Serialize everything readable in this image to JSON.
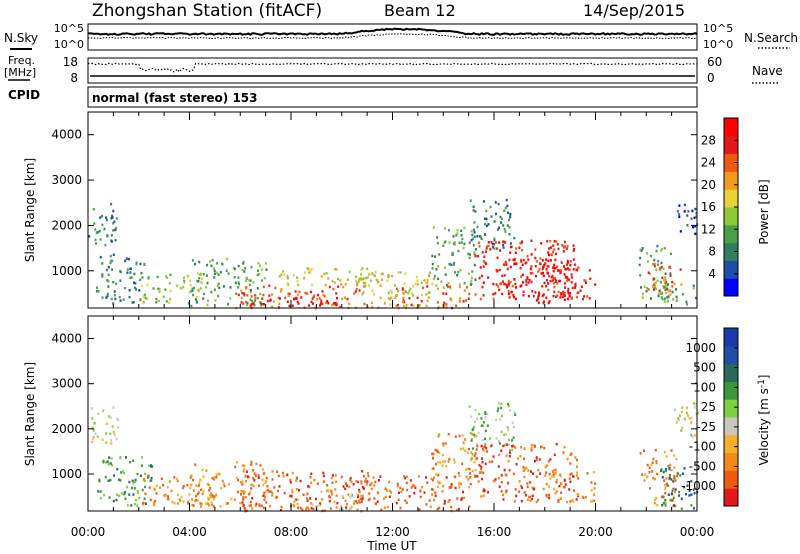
{
  "header": {
    "station": "Zhongshan Station (fitACF)",
    "beam": "Beam 12",
    "date": "14/Sep/2015"
  },
  "summary_panels": {
    "nsky_label": "N.Sky",
    "nsky_ticks": [
      "10^5",
      "10^0"
    ],
    "nsearch_label": "N.Search",
    "freq_label_line1": "Freq.",
    "freq_label_line2": "[MHz]",
    "freq_ticks": [
      "18",
      "8"
    ],
    "nave_label": "Nave",
    "nave_ticks": [
      "60",
      "0"
    ],
    "cpid_label": "CPID",
    "cpid_text": "normal (fast stereo) 153"
  },
  "colors": {
    "power_scale": [
      "#0000ff",
      "#1f4ea8",
      "#2f7f5f",
      "#4aa04a",
      "#8ec83c",
      "#e8d23a",
      "#f09a1e",
      "#ef5a12",
      "#e31a1c",
      "#ff0000"
    ],
    "velocity_scale": [
      "#e31a1c",
      "#f05a12",
      "#f08a18",
      "#f3b02a",
      "#c8c8c0",
      "#7fd040",
      "#3a9a3a",
      "#2a6a5a",
      "#1f4ea8",
      "#1e3aa8"
    ]
  },
  "chart_data": [
    {
      "type": "heatmap",
      "title": "Power",
      "ylabel": "Slant Range [km]",
      "xlabel": "Time UT",
      "x_ticks": [
        "00:00",
        "04:00",
        "08:00",
        "12:00",
        "16:00",
        "20:00",
        "00:00"
      ],
      "y_ticks": [
        "1000",
        "2000",
        "3000",
        "4000"
      ],
      "ylim": [
        180,
        4500
      ],
      "xlim_hours": [
        0,
        24
      ],
      "colorbar_label": "Power [dB]",
      "colorbar_ticks": [
        "28",
        "24",
        "20",
        "16",
        "12",
        "8",
        "4"
      ],
      "colorbar_range": [
        0,
        32
      ],
      "regions": [
        {
          "t0": 0.0,
          "t1": 1.1,
          "r0": 1500,
          "r1": 2500,
          "level": 2
        },
        {
          "t0": 0.3,
          "t1": 2.2,
          "r0": 300,
          "r1": 1400,
          "level": 2
        },
        {
          "t0": 2.0,
          "t1": 4.5,
          "r0": 300,
          "r1": 1000,
          "level": 4
        },
        {
          "t0": 4.0,
          "t1": 7.0,
          "r0": 250,
          "r1": 1300,
          "level": 3
        },
        {
          "t0": 5.8,
          "t1": 11.0,
          "r0": 200,
          "r1": 700,
          "level": 7
        },
        {
          "t0": 6.0,
          "t1": 10.0,
          "r0": 200,
          "r1": 450,
          "level": 9
        },
        {
          "t0": 7.5,
          "t1": 11.5,
          "r0": 700,
          "r1": 1100,
          "level": 5
        },
        {
          "t0": 10.5,
          "t1": 14.0,
          "r0": 200,
          "r1": 1000,
          "level": 5
        },
        {
          "t0": 12.0,
          "t1": 15.0,
          "r0": 200,
          "r1": 700,
          "level": 7
        },
        {
          "t0": 13.5,
          "t1": 15.3,
          "r0": 700,
          "r1": 2000,
          "level": 3
        },
        {
          "t0": 15.0,
          "t1": 16.8,
          "r0": 1500,
          "r1": 2600,
          "level": 2
        },
        {
          "t0": 15.2,
          "t1": 19.3,
          "r0": 400,
          "r1": 1700,
          "level": 8
        },
        {
          "t0": 16.0,
          "t1": 19.0,
          "r0": 300,
          "r1": 1300,
          "level": 9
        },
        {
          "t0": 18.0,
          "t1": 20.0,
          "r0": 400,
          "r1": 1100,
          "level": 8
        },
        {
          "t0": 21.7,
          "t1": 23.0,
          "r0": 300,
          "r1": 1600,
          "level": 3
        },
        {
          "t0": 22.0,
          "t1": 23.5,
          "r0": 500,
          "r1": 1200,
          "level": 7
        },
        {
          "t0": 22.5,
          "t1": 24.0,
          "r0": 250,
          "r1": 700,
          "level": 3
        },
        {
          "t0": 23.2,
          "t1": 24.0,
          "r0": 1800,
          "r1": 2600,
          "level": 1
        }
      ]
    },
    {
      "type": "heatmap",
      "title": "Velocity",
      "ylabel": "Slant Range [km]",
      "xlabel": "Time UT",
      "x_ticks": [
        "00:00",
        "04:00",
        "08:00",
        "12:00",
        "16:00",
        "20:00",
        "00:00"
      ],
      "y_ticks": [
        "1000",
        "2000",
        "3000",
        "4000"
      ],
      "ylim": [
        180,
        4500
      ],
      "xlim_hours": [
        0,
        24
      ],
      "colorbar_label": "Velocity [m s-1]",
      "colorbar_ticks": [
        "1000",
        "500",
        "100",
        "25",
        "-25",
        "-100",
        "-500",
        "-1000"
      ],
      "regions": [
        {
          "t0": 0.0,
          "t1": 1.2,
          "r0": 1700,
          "r1": 2500,
          "level": 4
        },
        {
          "t0": 0.3,
          "t1": 2.5,
          "r0": 300,
          "r1": 1400,
          "level": 6
        },
        {
          "t0": 2.0,
          "t1": 5.0,
          "r0": 300,
          "r1": 1000,
          "level": 2
        },
        {
          "t0": 4.0,
          "t1": 7.0,
          "r0": 300,
          "r1": 1300,
          "level": 2
        },
        {
          "t0": 6.0,
          "t1": 11.0,
          "r0": 200,
          "r1": 1100,
          "level": 1
        },
        {
          "t0": 8.0,
          "t1": 10.5,
          "r0": 200,
          "r1": 700,
          "level": 3
        },
        {
          "t0": 10.5,
          "t1": 15.0,
          "r0": 200,
          "r1": 1000,
          "level": 1
        },
        {
          "t0": 13.5,
          "t1": 15.3,
          "r0": 700,
          "r1": 2000,
          "level": 2
        },
        {
          "t0": 15.0,
          "t1": 16.8,
          "r0": 1500,
          "r1": 2600,
          "level": 5
        },
        {
          "t0": 15.2,
          "t1": 19.3,
          "r0": 400,
          "r1": 1700,
          "level": 1
        },
        {
          "t0": 18.0,
          "t1": 20.0,
          "r0": 400,
          "r1": 1100,
          "level": 2
        },
        {
          "t0": 21.7,
          "t1": 23.2,
          "r0": 300,
          "r1": 1600,
          "level": 2
        },
        {
          "t0": 22.5,
          "t1": 24.0,
          "r0": 250,
          "r1": 1200,
          "level": 7
        },
        {
          "t0": 23.0,
          "t1": 24.0,
          "r0": 1800,
          "r1": 2600,
          "level": 4
        }
      ]
    }
  ]
}
